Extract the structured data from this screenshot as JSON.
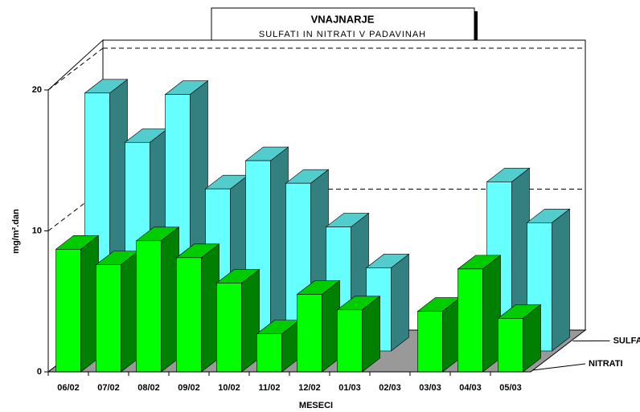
{
  "chart_data": {
    "type": "bar3d",
    "title": "VNAJNARJE",
    "subtitle": "SULFATI IN NITRATI V PADAVINAH",
    "x_label": "MESECI",
    "y_label": "mg/m².dan",
    "categories": [
      "06/02",
      "07/02",
      "08/02",
      "09/02",
      "10/02",
      "11/02",
      "12/02",
      "01/03",
      "02/03",
      "03/03",
      "04/03",
      "05/03"
    ],
    "series": [
      {
        "name": "NITRATI",
        "color": "#00ff00",
        "values": [
          8.7,
          7.6,
          9.3,
          8.1,
          6.3,
          2.7,
          5.5,
          4.4,
          null,
          4.3,
          7.3,
          3.8
        ]
      },
      {
        "name": "SULFATI",
        "color": "#66ffff",
        "values": [
          18.3,
          14.8,
          18.2,
          11.5,
          13.5,
          11.9,
          8.8,
          5.9,
          null,
          null,
          12.0,
          9.1
        ]
      }
    ],
    "ylim": [
      0,
      20
    ],
    "yticks": [
      0,
      10,
      20
    ],
    "grid": true
  }
}
